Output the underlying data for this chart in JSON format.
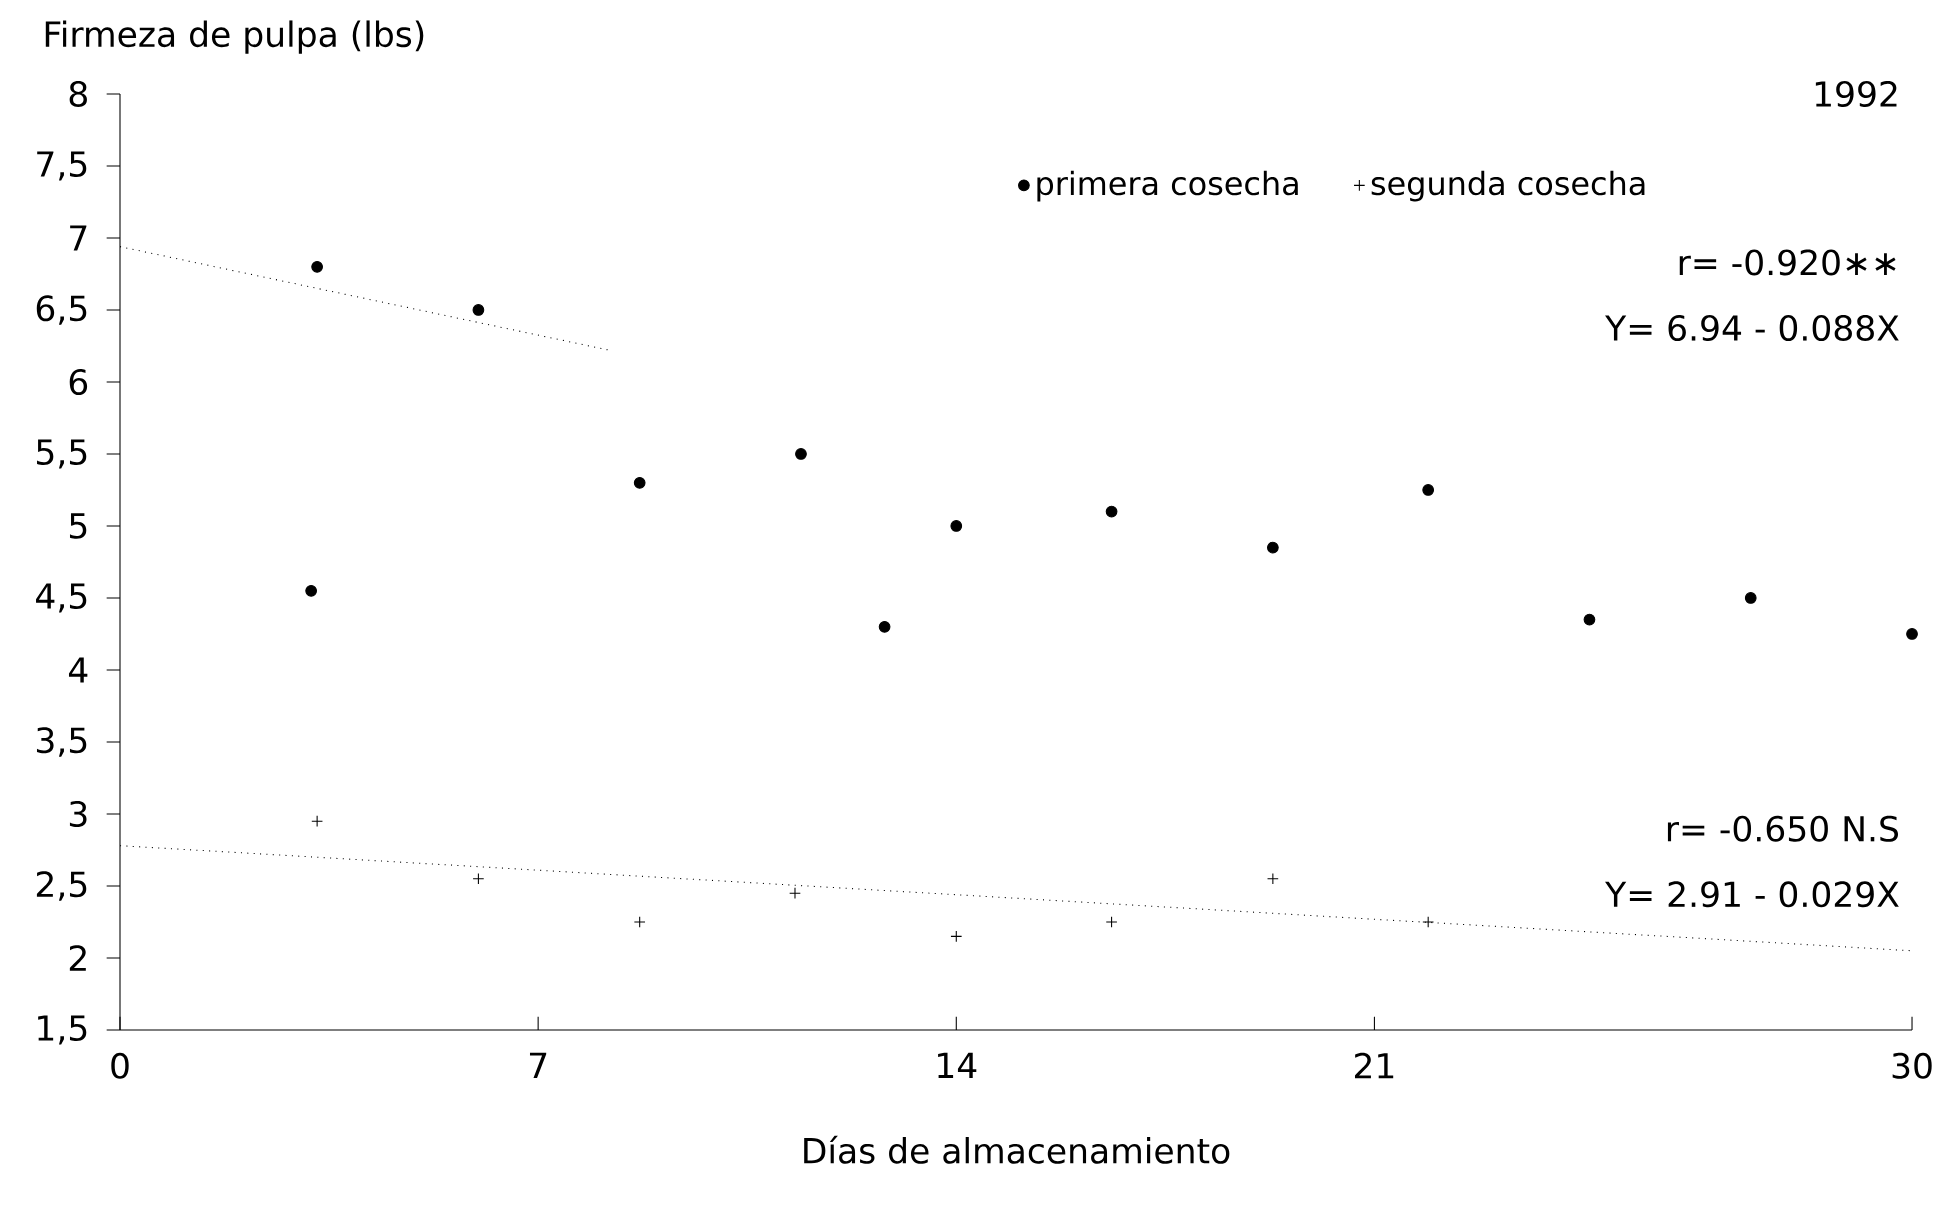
{
  "chart_data": {
    "type": "scatter",
    "title": "1992",
    "xlabel": "Días de almacenamiento",
    "ylabel": "Firmeza de pulpa (lbs)",
    "xlim": [
      0,
      30
    ],
    "xticks": [
      0,
      7,
      14,
      21,
      30
    ],
    "ylim": [
      1.5,
      8
    ],
    "yticks": [
      {
        "value": 1.5,
        "label": "1,5"
      },
      2,
      {
        "value": 2.5,
        "label": "2,5"
      },
      3,
      {
        "value": 3.5,
        "label": "3,5"
      },
      4,
      {
        "value": 4.5,
        "label": "4,5"
      },
      5,
      {
        "value": 5.5,
        "label": "5,5"
      },
      6,
      {
        "value": 6.5,
        "label": "6,5"
      },
      7,
      {
        "value": 7.5,
        "label": "7,5"
      },
      8
    ],
    "legend": "top right",
    "series": [
      {
        "name": "primera cosecha",
        "color": "#000000",
        "marker": "circle",
        "x": [
          3.3,
          3.2,
          6.0,
          8.7,
          11.4,
          12.8,
          14.0,
          16.6,
          19.3,
          21.9,
          24.6,
          27.3,
          30
        ],
        "values": [
          6.8,
          4.55,
          6.5,
          5.3,
          5.5,
          4.3,
          5.0,
          5.1,
          4.85,
          5.25,
          4.35,
          4.5,
          4.25
        ]
      },
      {
        "name": "segunda cosecha",
        "color": "#000000",
        "marker": "cross",
        "x": [
          3.3,
          6.0,
          8.7,
          11.3,
          14.0,
          16.6,
          19.3,
          21.9
        ],
        "values": [
          2.95,
          2.55,
          2.25,
          2.45,
          2.15,
          2.25,
          2.55,
          2.25
        ]
      },
      {
        "type": "line",
        "color": "#000000",
        "marker": "none",
        "line_style": "dotted",
        "x": [
          0,
          8.2
        ],
        "values": [
          6.94,
          6.22
        ]
      },
      {
        "type": "line",
        "color": "#000000",
        "marker": "none",
        "line_style": "dotted",
        "x": [
          0,
          30
        ],
        "values": [
          2.78,
          2.05
        ]
      }
    ],
    "annotations": [
      "r= -0.920∗∗",
      "Y= 6.94 - 0.088X",
      "r= -0.650 N.S",
      "Y= 2.91 - 0.029X"
    ]
  }
}
